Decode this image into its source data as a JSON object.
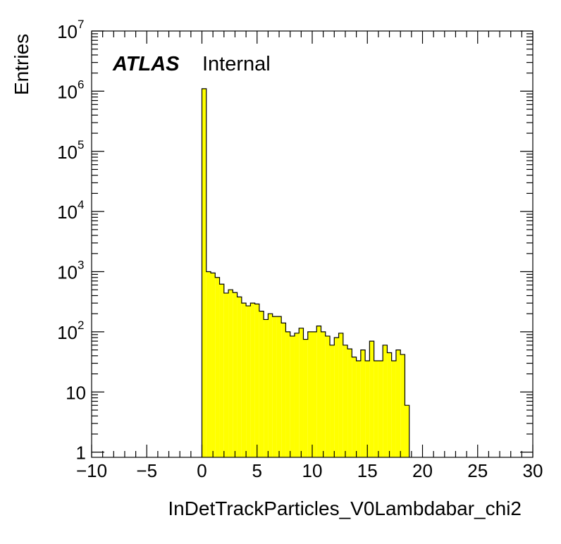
{
  "chart_data": {
    "type": "histogram",
    "title": "",
    "xlabel": "InDetTrackParticles_V0Lambdabar_chi2",
    "ylabel": "Entries",
    "xlim": [
      -10,
      30
    ],
    "ylim": [
      0.82,
      10000000
    ],
    "yscale": "log",
    "grid": false,
    "legend": "none",
    "x_ticks": [
      {
        "value": -10,
        "label": "−10"
      },
      {
        "value": -5,
        "label": "−5"
      },
      {
        "value": 0,
        "label": "0"
      },
      {
        "value": 5,
        "label": "5"
      },
      {
        "value": 10,
        "label": "10"
      },
      {
        "value": 15,
        "label": "15"
      },
      {
        "value": 20,
        "label": "20"
      },
      {
        "value": 25,
        "label": "25"
      },
      {
        "value": 30,
        "label": "30"
      }
    ],
    "y_ticks": [
      {
        "value": 1,
        "base": "1",
        "exp": ""
      },
      {
        "value": 10,
        "base": "10",
        "exp": ""
      },
      {
        "value": 100,
        "base": "10",
        "exp": "2"
      },
      {
        "value": 1000,
        "base": "10",
        "exp": "3"
      },
      {
        "value": 10000,
        "base": "10",
        "exp": "4"
      },
      {
        "value": 100000,
        "base": "10",
        "exp": "5"
      },
      {
        "value": 1000000,
        "base": "10",
        "exp": "6"
      },
      {
        "value": 10000000,
        "base": "10",
        "exp": "7"
      }
    ],
    "bin_start": 0,
    "bin_width": 0.4,
    "values": [
      1100000,
      1000,
      950,
      800,
      620,
      440,
      500,
      450,
      380,
      300,
      270,
      300,
      290,
      220,
      160,
      200,
      180,
      180,
      140,
      100,
      85,
      95,
      115,
      75,
      100,
      100,
      125,
      100,
      85,
      60,
      80,
      95,
      60,
      52,
      38,
      33,
      50,
      33,
      70,
      33,
      33,
      60,
      45,
      33,
      50,
      42,
      6
    ],
    "colors": {
      "fill": "#ffff00",
      "line": "#000000"
    }
  },
  "labels": {
    "atlas": "ATLAS",
    "internal": "Internal"
  }
}
